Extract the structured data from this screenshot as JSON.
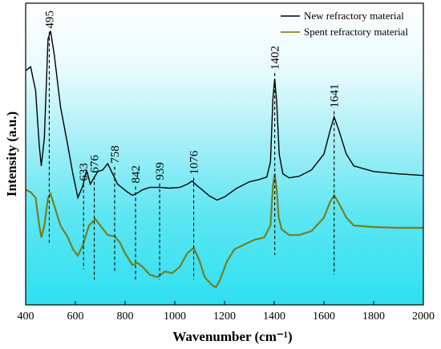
{
  "chart_data": {
    "type": "line",
    "xlabel": "Wavenumber (cm⁻¹)",
    "ylabel": "Intensity (a.u.)",
    "xlim": [
      400,
      2000
    ],
    "x_ticks": [
      "400",
      "600",
      "800",
      "1000",
      "1200",
      "1400",
      "1600",
      "1800",
      "2000"
    ],
    "y_ticks_shown": false,
    "legend_position": "top-right",
    "background": "cyan gradient fading to white toward the top",
    "series": [
      {
        "name": "New refractory material",
        "color": "#000000",
        "points": [
          [
            400,
            0.615
          ],
          [
            420,
            0.62
          ],
          [
            440,
            0.59
          ],
          [
            455,
            0.52
          ],
          [
            463,
            0.495
          ],
          [
            475,
            0.53
          ],
          [
            490,
            0.655
          ],
          [
            500,
            0.665
          ],
          [
            515,
            0.635
          ],
          [
            540,
            0.57
          ],
          [
            570,
            0.52
          ],
          [
            590,
            0.485
          ],
          [
            610,
            0.455
          ],
          [
            630,
            0.47
          ],
          [
            645,
            0.49
          ],
          [
            660,
            0.472
          ],
          [
            675,
            0.48
          ],
          [
            690,
            0.488
          ],
          [
            710,
            0.49
          ],
          [
            730,
            0.498
          ],
          [
            750,
            0.485
          ],
          [
            770,
            0.472
          ],
          [
            790,
            0.467
          ],
          [
            810,
            0.462
          ],
          [
            830,
            0.458
          ],
          [
            850,
            0.461
          ],
          [
            870,
            0.465
          ],
          [
            900,
            0.468
          ],
          [
            940,
            0.468
          ],
          [
            980,
            0.467
          ],
          [
            1020,
            0.468
          ],
          [
            1050,
            0.472
          ],
          [
            1070,
            0.476
          ],
          [
            1090,
            0.47
          ],
          [
            1110,
            0.465
          ],
          [
            1140,
            0.457
          ],
          [
            1170,
            0.452
          ],
          [
            1200,
            0.456
          ],
          [
            1250,
            0.467
          ],
          [
            1300,
            0.475
          ],
          [
            1340,
            0.478
          ],
          [
            1370,
            0.481
          ],
          [
            1385,
            0.5
          ],
          [
            1395,
            0.58
          ],
          [
            1402,
            0.605
          ],
          [
            1410,
            0.575
          ],
          [
            1420,
            0.51
          ],
          [
            1435,
            0.485
          ],
          [
            1460,
            0.48
          ],
          [
            1500,
            0.482
          ],
          [
            1550,
            0.49
          ],
          [
            1600,
            0.51
          ],
          [
            1625,
            0.54
          ],
          [
            1641,
            0.557
          ],
          [
            1660,
            0.54
          ],
          [
            1690,
            0.51
          ],
          [
            1720,
            0.495
          ],
          [
            1800,
            0.488
          ],
          [
            1900,
            0.485
          ],
          [
            2000,
            0.483
          ]
        ]
      },
      {
        "name": "Spent refractory material",
        "color": "#5a8a00",
        "points": [
          [
            400,
            0.465
          ],
          [
            420,
            0.462
          ],
          [
            440,
            0.455
          ],
          [
            455,
            0.42
          ],
          [
            463,
            0.405
          ],
          [
            475,
            0.42
          ],
          [
            490,
            0.455
          ],
          [
            500,
            0.46
          ],
          [
            515,
            0.445
          ],
          [
            540,
            0.42
          ],
          [
            570,
            0.405
          ],
          [
            590,
            0.39
          ],
          [
            610,
            0.382
          ],
          [
            630,
            0.395
          ],
          [
            655,
            0.42
          ],
          [
            680,
            0.428
          ],
          [
            700,
            0.42
          ],
          [
            730,
            0.408
          ],
          [
            760,
            0.406
          ],
          [
            780,
            0.398
          ],
          [
            800,
            0.385
          ],
          [
            830,
            0.37
          ],
          [
            850,
            0.373
          ],
          [
            870,
            0.368
          ],
          [
            900,
            0.358
          ],
          [
            930,
            0.355
          ],
          [
            960,
            0.362
          ],
          [
            990,
            0.36
          ],
          [
            1020,
            0.368
          ],
          [
            1050,
            0.385
          ],
          [
            1076,
            0.392
          ],
          [
            1100,
            0.375
          ],
          [
            1120,
            0.355
          ],
          [
            1150,
            0.345
          ],
          [
            1165,
            0.342
          ],
          [
            1180,
            0.35
          ],
          [
            1210,
            0.375
          ],
          [
            1240,
            0.39
          ],
          [
            1280,
            0.396
          ],
          [
            1320,
            0.402
          ],
          [
            1360,
            0.405
          ],
          [
            1385,
            0.42
          ],
          [
            1395,
            0.47
          ],
          [
            1402,
            0.485
          ],
          [
            1410,
            0.465
          ],
          [
            1418,
            0.43
          ],
          [
            1430,
            0.415
          ],
          [
            1460,
            0.408
          ],
          [
            1500,
            0.408
          ],
          [
            1550,
            0.413
          ],
          [
            1600,
            0.43
          ],
          [
            1625,
            0.45
          ],
          [
            1641,
            0.458
          ],
          [
            1660,
            0.448
          ],
          [
            1690,
            0.43
          ],
          [
            1720,
            0.42
          ],
          [
            1800,
            0.418
          ],
          [
            1900,
            0.417
          ],
          [
            2000,
            0.417
          ]
        ]
      }
    ],
    "ymin": 0.32,
    "ymax": 0.7,
    "peak_markers": [
      {
        "label": "495",
        "x": 495,
        "y_top": 0.66,
        "y_bottom": 0.395
      },
      {
        "label": "633",
        "x": 633,
        "y_top": 0.468,
        "y_bottom": 0.365
      },
      {
        "label": "676",
        "x": 676,
        "y_top": 0.478,
        "y_bottom": 0.352
      },
      {
        "label": "758",
        "x": 758,
        "y_top": 0.49,
        "y_bottom": 0.362
      },
      {
        "label": "842",
        "x": 842,
        "y_top": 0.465,
        "y_bottom": 0.352
      },
      {
        "label": "939",
        "x": 939,
        "y_top": 0.469,
        "y_bottom": 0.352
      },
      {
        "label": "1076",
        "x": 1076,
        "y_top": 0.476,
        "y_bottom": 0.352
      },
      {
        "label": "1402",
        "x": 1402,
        "y_top": 0.608,
        "y_bottom": 0.383
      },
      {
        "label": "1641",
        "x": 1641,
        "y_top": 0.56,
        "y_bottom": 0.358
      }
    ]
  }
}
